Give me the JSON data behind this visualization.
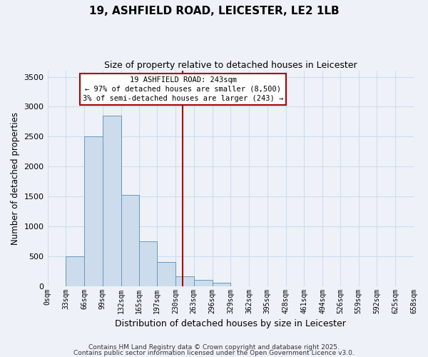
{
  "title": "19, ASHFIELD ROAD, LEICESTER, LE2 1LB",
  "subtitle": "Size of property relative to detached houses in Leicester",
  "xlabel": "Distribution of detached houses by size in Leicester",
  "ylabel": "Number of detached properties",
  "bar_values": [
    0,
    500,
    2500,
    2850,
    1530,
    750,
    400,
    160,
    100,
    60,
    0,
    0,
    0,
    0,
    0,
    0,
    0,
    0,
    0,
    0
  ],
  "bin_edges": [
    0,
    33,
    66,
    99,
    132,
    165,
    197,
    230,
    263,
    296,
    329,
    362,
    395,
    428,
    461,
    494,
    526,
    559,
    592,
    625,
    658
  ],
  "tick_labels": [
    "0sqm",
    "33sqm",
    "66sqm",
    "99sqm",
    "132sqm",
    "165sqm",
    "197sqm",
    "230sqm",
    "263sqm",
    "296sqm",
    "329sqm",
    "362sqm",
    "395sqm",
    "428sqm",
    "461sqm",
    "494sqm",
    "526sqm",
    "559sqm",
    "592sqm",
    "625sqm",
    "658sqm"
  ],
  "vline_x": 243,
  "vline_color": "#aa0000",
  "bar_facecolor": "#ccdcec",
  "bar_edgecolor": "#6699bb",
  "ylim": [
    0,
    3600
  ],
  "yticks": [
    0,
    500,
    1000,
    1500,
    2000,
    2500,
    3000,
    3500
  ],
  "annotation_title": "19 ASHFIELD ROAD: 243sqm",
  "annotation_line1": "← 97% of detached houses are smaller (8,500)",
  "annotation_line2": "3% of semi-detached houses are larger (243) →",
  "annotation_box_edgecolor": "#aa0000",
  "annotation_box_facecolor": "#ffffff",
  "grid_color": "#ccddee",
  "background_color": "#eef2f8",
  "footnote1": "Contains HM Land Registry data © Crown copyright and database right 2025.",
  "footnote2": "Contains public sector information licensed under the Open Government Licence v3.0."
}
